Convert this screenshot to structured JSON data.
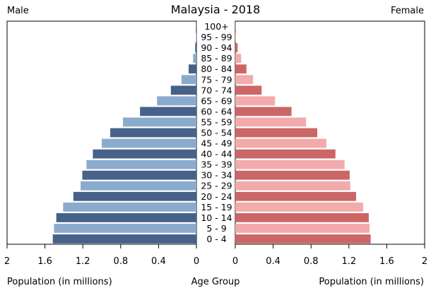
{
  "chart_data": {
    "type": "bar",
    "title": "Malaysia - 2018",
    "left_header": "Male",
    "right_header": "Female",
    "xlabel_left": "Population (in millions)",
    "xlabel_center": "Age Group",
    "xlabel_right": "Population (in millions)",
    "xlim": [
      0,
      2
    ],
    "ticks": [
      "2",
      "1.6",
      "1.2",
      "0.8",
      "0.4",
      "0"
    ],
    "ticks_right": [
      "0",
      "0.4",
      "0.8",
      "1.2",
      "1.6",
      "2"
    ],
    "categories": [
      "100+",
      "95 - 99",
      "90 - 94",
      "85 - 89",
      "80 - 84",
      "75 - 79",
      "70 - 74",
      "65 - 69",
      "60 - 64",
      "55 - 59",
      "50 - 54",
      "45 - 49",
      "40 - 44",
      "35 - 39",
      "30 - 34",
      "25 - 29",
      "20 - 24",
      "15 - 19",
      "10 - 14",
      "5 - 9",
      "0 - 4"
    ],
    "series": [
      {
        "name": "Male",
        "values": [
          0.0003,
          0.003,
          0.013,
          0.035,
          0.082,
          0.158,
          0.27,
          0.416,
          0.596,
          0.776,
          0.91,
          1.0,
          1.094,
          1.161,
          1.205,
          1.223,
          1.3,
          1.408,
          1.48,
          1.504,
          1.517
        ],
        "colors": [
          "#46628a",
          "#8aabcc"
        ]
      },
      {
        "name": "Female",
        "values": [
          0.0007,
          0.006,
          0.025,
          0.062,
          0.118,
          0.188,
          0.278,
          0.42,
          0.594,
          0.748,
          0.866,
          0.962,
          1.058,
          1.154,
          1.208,
          1.214,
          1.276,
          1.35,
          1.41,
          1.418,
          1.43
        ],
        "colors": [
          "#cc6666",
          "#f2aaaa"
        ]
      }
    ]
  }
}
